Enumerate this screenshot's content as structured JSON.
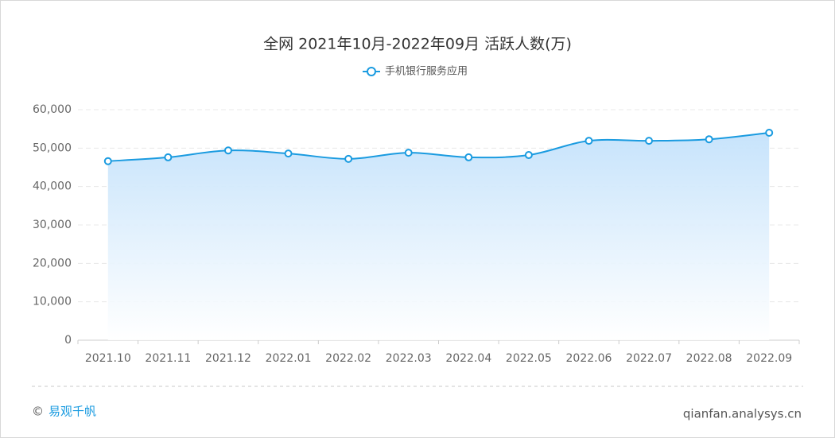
{
  "chart_data": {
    "type": "line",
    "title": "全网 2021年10月-2022年09月 活跃人数(万)",
    "categories": [
      "2021.10",
      "2021.11",
      "2021.12",
      "2022.01",
      "2022.02",
      "2022.03",
      "2022.04",
      "2022.05",
      "2022.06",
      "2022.07",
      "2022.08",
      "2022.09"
    ],
    "series": [
      {
        "name": "手机银行服务应用",
        "color": "#1a9be0",
        "values": [
          46600,
          47600,
          49400,
          48600,
          47200,
          48800,
          47600,
          48200,
          51900,
          51900,
          52300,
          54000
        ]
      }
    ],
    "ylim": [
      0,
      60000
    ],
    "yticks": [
      0,
      {
        "value": 10000,
        "label": "10,000"
      },
      {
        "value": 20000,
        "label": "20,000"
      },
      {
        "value": 30000,
        "label": "30,000"
      },
      {
        "value": 40000,
        "label": "40,000"
      },
      {
        "value": 50000,
        "label": "50,000"
      },
      {
        "value": 60000,
        "label": "60,000"
      }
    ],
    "grid": true,
    "area": true,
    "smooth": true,
    "legend": "top"
  },
  "footer": {
    "symbol": "©",
    "brand": "易观千帆",
    "site": "qianfan.analysys.cn"
  }
}
